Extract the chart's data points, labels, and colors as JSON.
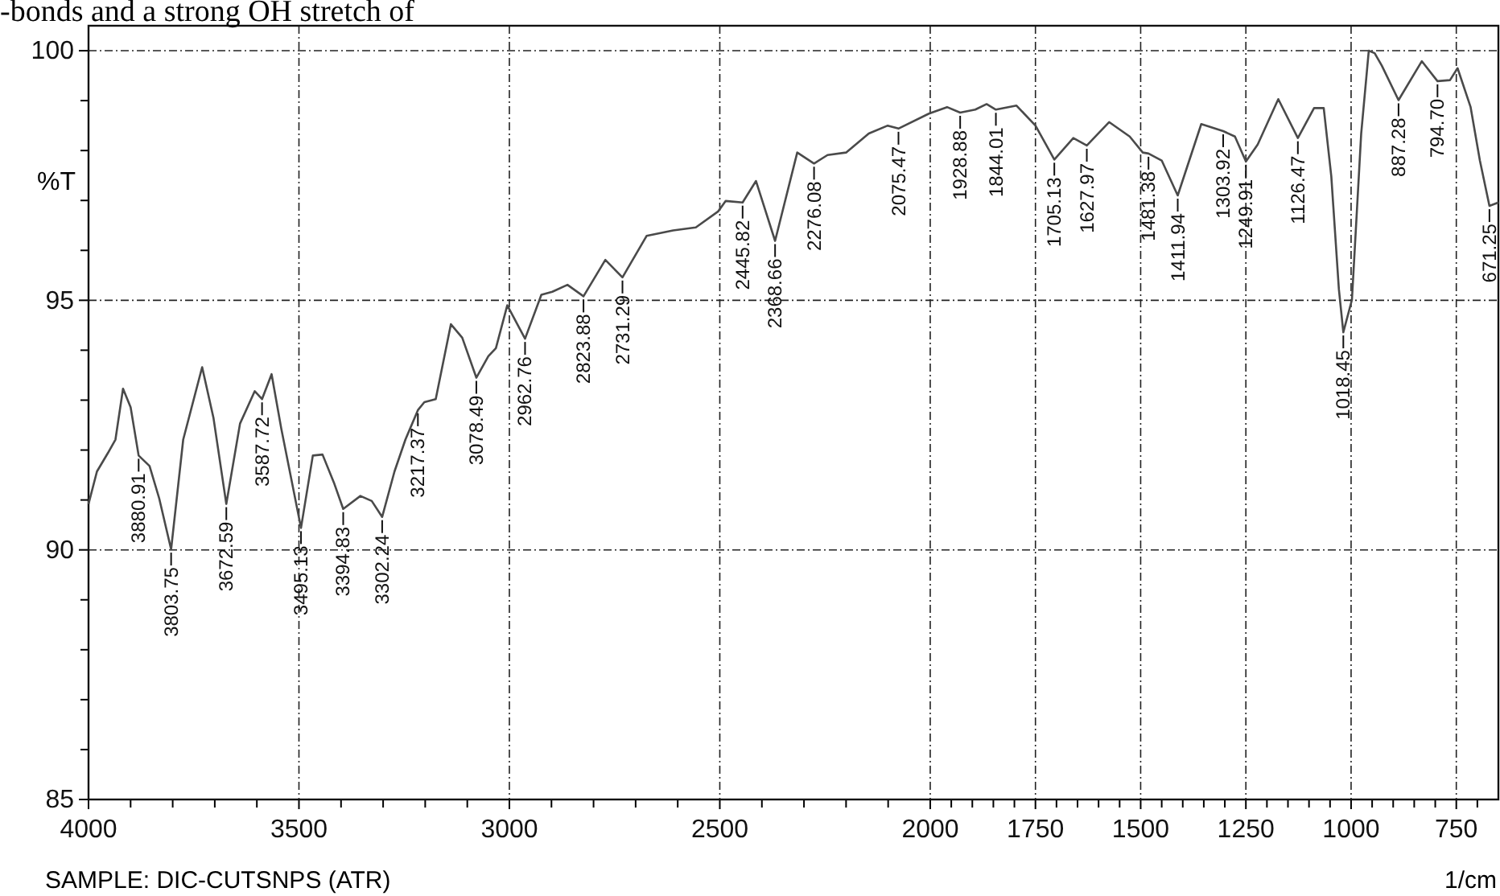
{
  "chart_data": {
    "type": "line",
    "ylabel": "%T",
    "xlabel": "1/cm",
    "xlim": [
      4000,
      650
    ],
    "ylim": [
      85,
      100.5
    ],
    "xticks": [
      4000,
      {
        "value": 3900,
        "label": null
      },
      {
        "value": 3800,
        "label": null
      },
      {
        "value": 3700,
        "label": null
      },
      {
        "value": 3600,
        "label": null
      },
      3500,
      {
        "value": 3400,
        "label": null
      },
      {
        "value": 3300,
        "label": null
      },
      {
        "value": 3200,
        "label": null
      },
      {
        "value": 3100,
        "label": null
      },
      3000,
      {
        "value": 2900,
        "label": null
      },
      {
        "value": 2800,
        "label": null
      },
      {
        "value": 2700,
        "label": null
      },
      {
        "value": 2600,
        "label": null
      },
      2500,
      {
        "value": 2400,
        "label": null
      },
      {
        "value": 2300,
        "label": null
      },
      {
        "value": 2200,
        "label": null
      },
      {
        "value": 2100,
        "label": null
      },
      2000,
      {
        "value": 1950,
        "label": null
      },
      {
        "value": 1900,
        "label": null
      },
      {
        "value": 1850,
        "label": null
      },
      {
        "value": 1800,
        "label": null
      },
      1750,
      {
        "value": 1700,
        "label": null
      },
      {
        "value": 1650,
        "label": null
      },
      {
        "value": 1600,
        "label": null
      },
      {
        "value": 1550,
        "label": null
      },
      1500,
      {
        "value": 1450,
        "label": null
      },
      {
        "value": 1400,
        "label": null
      },
      {
        "value": 1350,
        "label": null
      },
      {
        "value": 1300,
        "label": null
      },
      1250,
      {
        "value": 1200,
        "label": null
      },
      {
        "value": 1150,
        "label": null
      },
      {
        "value": 1100,
        "label": null
      },
      {
        "value": 1050,
        "label": null
      },
      1000,
      {
        "value": 950,
        "label": null
      },
      {
        "value": 900,
        "label": null
      },
      {
        "value": 850,
        "label": null
      },
      {
        "value": 800,
        "label": null
      },
      750,
      {
        "value": 700,
        "label": null
      }
    ],
    "yticks": [
      85,
      {
        "value": 86,
        "label": null
      },
      {
        "value": 87,
        "label": null
      },
      {
        "value": 88,
        "label": null
      },
      {
        "value": 89,
        "label": null
      },
      90,
      {
        "value": 91,
        "label": null
      },
      {
        "value": 92,
        "label": null
      },
      {
        "value": 93,
        "label": null
      },
      {
        "value": 94,
        "label": null
      },
      95,
      {
        "value": 96,
        "label": null
      },
      {
        "value": 97,
        "label": null
      },
      {
        "value": 98,
        "label": null
      },
      {
        "value": 99,
        "label": null
      },
      100
    ],
    "grid": true,
    "marker": "none",
    "line_style": "solid",
    "series": [
      {
        "color": "#4a4a4a",
        "x": [
          4000,
          3980,
          3954,
          3936,
          3918,
          3900,
          3880.91,
          3855,
          3832,
          3803.75,
          3775,
          3730,
          3703,
          3672.59,
          3640,
          3605,
          3587.72,
          3565,
          3542,
          3495.13,
          3467,
          3444,
          3417,
          3394.83,
          3354,
          3327,
          3302.24,
          3273,
          3247,
          3217.37,
          3202,
          3175,
          3139,
          3112,
          3078.49,
          3050,
          3032,
          3005,
          2962.76,
          2924,
          2898,
          2862,
          2823.88,
          2772,
          2731.29,
          2674,
          2611,
          2557,
          2504,
          2486,
          2445.82,
          2414,
          2368.66,
          2316,
          2276.08,
          2244,
          2200,
          2146,
          2101,
          2075.47,
          2003,
          1960,
          1928.88,
          1893,
          1866,
          1844.01,
          1795,
          1750,
          1705.13,
          1660,
          1627.97,
          1575,
          1526,
          1495,
          1481.38,
          1450,
          1411.94,
          1356,
          1303.92,
          1276,
          1249.91,
          1222,
          1173,
          1126.47,
          1088,
          1065,
          1047,
          1029,
          1018.45,
          998,
          976,
          958,
          944,
          927,
          887.28,
          832,
          794.7,
          765,
          747,
          716,
          694,
          671.25,
          650
        ],
        "values": [
          90.92,
          91.57,
          91.94,
          92.21,
          93.23,
          92.86,
          91.89,
          91.68,
          91.03,
          90.01,
          92.21,
          93.66,
          92.64,
          90.92,
          92.53,
          93.18,
          93.02,
          93.52,
          92.43,
          90.44,
          91.89,
          91.91,
          91.35,
          90.82,
          91.08,
          90.98,
          90.66,
          91.57,
          92.21,
          92.8,
          92.96,
          93.02,
          94.52,
          94.25,
          93.45,
          93.88,
          94.04,
          94.9,
          94.23,
          95.11,
          95.17,
          95.31,
          95.08,
          95.81,
          95.46,
          96.29,
          96.4,
          96.46,
          96.78,
          96.99,
          96.96,
          97.39,
          96.19,
          97.96,
          97.74,
          97.91,
          97.96,
          98.34,
          98.5,
          98.44,
          98.74,
          98.87,
          98.76,
          98.82,
          98.93,
          98.82,
          98.9,
          98.5,
          97.82,
          98.25,
          98.1,
          98.57,
          98.28,
          97.96,
          97.94,
          97.8,
          97.1,
          98.53,
          98.39,
          98.28,
          97.78,
          98.12,
          99.03,
          98.25,
          98.85,
          98.85,
          97.48,
          95.22,
          94.36,
          95.01,
          98.34,
          100.0,
          99.95,
          99.7,
          99.01,
          99.79,
          99.39,
          99.41,
          99.65,
          98.87,
          97.8,
          96.89,
          96.96
        ]
      }
    ],
    "annotations": [
      "-bonds and a strong OH stretch of",
      "SAMPLE: DIC-CUTSNPS (ATR)",
      {
        "text": "3880.91",
        "x": 3880.91,
        "y": 91.89
      },
      {
        "text": "3803.75",
        "x": 3803.75,
        "y": 90.01
      },
      {
        "text": "3672.59",
        "x": 3672.59,
        "y": 90.92
      },
      {
        "text": "3587.72",
        "x": 3587.72,
        "y": 93.02
      },
      {
        "text": "3495.13",
        "x": 3495.13,
        "y": 90.44
      },
      {
        "text": "3394.83",
        "x": 3394.83,
        "y": 90.82
      },
      {
        "text": "3302.24",
        "x": 3302.24,
        "y": 90.66
      },
      {
        "text": "3217.37",
        "x": 3217.37,
        "y": 92.8
      },
      {
        "text": "3078.49",
        "x": 3078.49,
        "y": 93.45
      },
      {
        "text": "2962.76",
        "x": 2962.76,
        "y": 94.23
      },
      {
        "text": "2823.88",
        "x": 2823.88,
        "y": 95.08
      },
      {
        "text": "2731.29",
        "x": 2731.29,
        "y": 95.46
      },
      {
        "text": "2445.82",
        "x": 2445.82,
        "y": 96.96
      },
      {
        "text": "2368.66",
        "x": 2368.66,
        "y": 96.19
      },
      {
        "text": "2276.08",
        "x": 2276.08,
        "y": 97.74
      },
      {
        "text": "2075.47",
        "x": 2075.47,
        "y": 98.44
      },
      {
        "text": "1928.88",
        "x": 1928.88,
        "y": 98.76
      },
      {
        "text": "1844.01",
        "x": 1844.01,
        "y": 98.82
      },
      {
        "text": "1705.13",
        "x": 1705.13,
        "y": 97.82
      },
      {
        "text": "1627.97",
        "x": 1627.97,
        "y": 98.1
      },
      {
        "text": "1481.38",
        "x": 1481.38,
        "y": 97.94
      },
      {
        "text": "1411.94",
        "x": 1411.94,
        "y": 97.1
      },
      {
        "text": "1303.92",
        "x": 1303.92,
        "y": 98.39
      },
      {
        "text": "1249.91",
        "x": 1249.91,
        "y": 97.78
      },
      {
        "text": "1126.47",
        "x": 1126.47,
        "y": 98.25
      },
      {
        "text": "1018.45",
        "x": 1018.45,
        "y": 94.36
      },
      {
        "text": "887.28",
        "x": 887.28,
        "y": 99.01
      },
      {
        "text": "794.70",
        "x": 794.7,
        "y": 99.39
      },
      {
        "text": "671.25",
        "x": 671.25,
        "y": 96.89
      }
    ]
  }
}
